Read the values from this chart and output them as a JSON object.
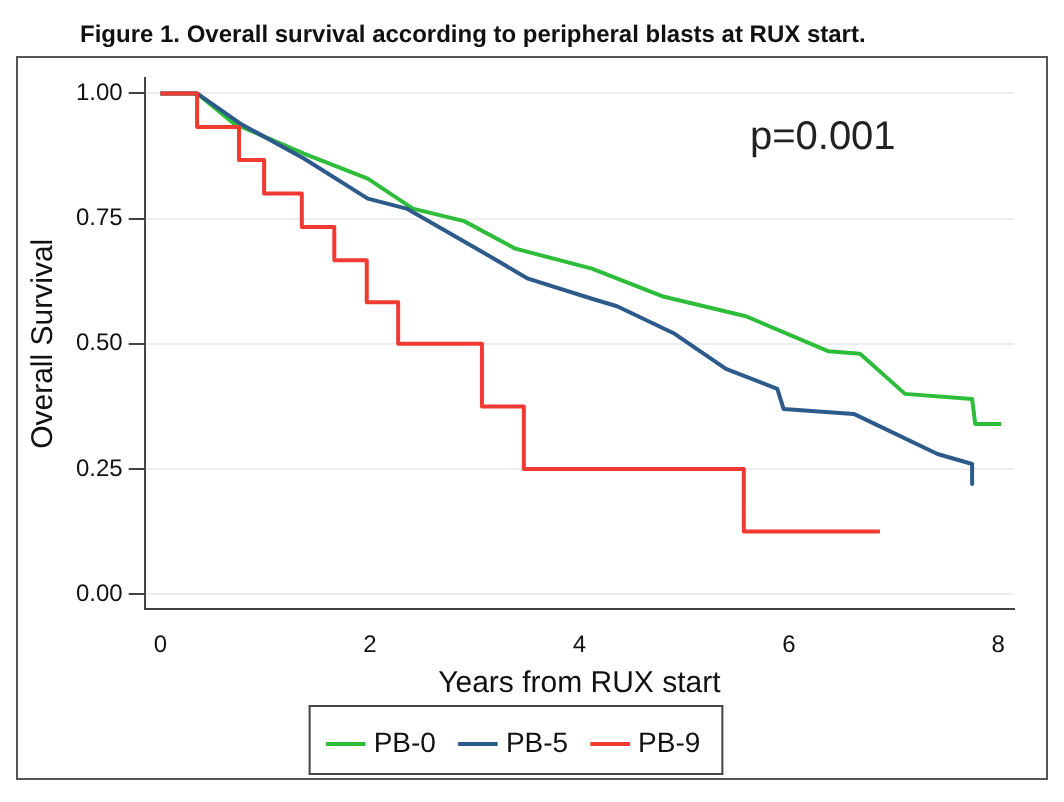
{
  "chart_data": {
    "type": "line",
    "title": "Figure 1. Overall survival according to peripheral blasts at RUX start.",
    "xlabel": "Years from RUX start",
    "ylabel": "Overall Survival",
    "series": [
      {
        "name": "PB-0",
        "color": "#2ebd3a",
        "x": [
          0,
          0.35,
          0.7,
          1.37,
          1.98,
          2.41,
          2.9,
          3.39,
          4.12,
          4.79,
          5.59,
          6.38,
          6.68,
          7.11,
          7.75,
          7.78,
          8.03
        ],
        "values": [
          1,
          1,
          0.94,
          0.88,
          0.83,
          0.77,
          0.745,
          0.69,
          0.65,
          0.595,
          0.555,
          0.485,
          0.48,
          0.4,
          0.39,
          0.34,
          0.34
        ]
      },
      {
        "name": "PB-5",
        "color": "#2c5a8a",
        "x": [
          0,
          0.35,
          0.76,
          1.37,
          1.98,
          2.35,
          3.02,
          3.51,
          4.12,
          4.36,
          4.91,
          5.4,
          5.89,
          5.95,
          6.62,
          7.42,
          7.75,
          7.75
        ],
        "values": [
          1,
          1,
          0.94,
          0.87,
          0.79,
          0.77,
          0.69,
          0.63,
          0.59,
          0.575,
          0.52,
          0.45,
          0.41,
          0.37,
          0.36,
          0.28,
          0.26,
          0.22
        ]
      },
      {
        "name": "PB-9",
        "type": "step",
        "color": "#f03a32",
        "x": [
          0,
          0.35,
          0.75,
          0.99,
          1.35,
          1.66,
          1.97,
          2.27,
          3.07,
          3.47,
          5.57,
          6.87
        ],
        "values": [
          1,
          0.933,
          0.867,
          0.8,
          0.733,
          0.667,
          0.583,
          0.5,
          0.375,
          0.25,
          0.125,
          0.125
        ]
      }
    ],
    "xlim": [
      -0.15,
      8.15
    ],
    "xticks": [
      0,
      2,
      4,
      6,
      8
    ],
    "ylim": [
      -0.03,
      1.03
    ],
    "yticks": [
      {
        "value": 0,
        "label": "0.00"
      },
      {
        "value": 0.25,
        "label": "0.25"
      },
      {
        "value": 0.5,
        "label": "0.50"
      },
      {
        "value": 0.75,
        "label": "0.75"
      },
      {
        "value": 1,
        "label": "1.00"
      }
    ],
    "grid": "y",
    "legend": "bottom",
    "line_style": "solid",
    "marker": "none",
    "annotations": [
      "p=0.001"
    ]
  }
}
